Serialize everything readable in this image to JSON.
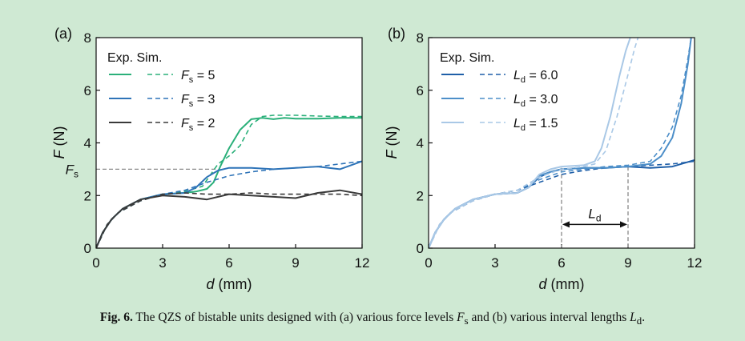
{
  "chart_data": [
    {
      "panel": "(a)",
      "type": "line",
      "xlabel_var": "d",
      "xlabel_unit": " (mm)",
      "ylabel_var": "F",
      "ylabel_unit": " (N)",
      "xlim": [
        0,
        12
      ],
      "ylim": [
        0,
        8
      ],
      "xticks": [
        0,
        3,
        6,
        9,
        12
      ],
      "yticks": [
        0,
        2,
        4,
        6,
        8
      ],
      "legend_header": "Exp. Sim.",
      "legend_placement": "top-left",
      "annotation": {
        "text": "F",
        "sub": "s",
        "value": 3
      },
      "series": [
        {
          "name": "Fs = 5",
          "var": "F",
          "sub": "s",
          "rest": " = 5",
          "color": "#2bb07a",
          "exp": [
            [
              0,
              0
            ],
            [
              0.3,
              0.6
            ],
            [
              0.7,
              1.1
            ],
            [
              1.2,
              1.5
            ],
            [
              2,
              1.85
            ],
            [
              3,
              2.05
            ],
            [
              4,
              2.1
            ],
            [
              4.5,
              2.15
            ],
            [
              5,
              2.25
            ],
            [
              5.3,
              2.5
            ],
            [
              5.6,
              3.1
            ],
            [
              6,
              3.8
            ],
            [
              6.5,
              4.5
            ],
            [
              7,
              4.9
            ],
            [
              7.5,
              4.95
            ],
            [
              8,
              4.9
            ],
            [
              8.5,
              4.95
            ],
            [
              9,
              4.92
            ],
            [
              10,
              4.92
            ],
            [
              11,
              4.95
            ],
            [
              12,
              4.95
            ]
          ],
          "sim": [
            [
              0,
              0
            ],
            [
              0.5,
              0.9
            ],
            [
              1,
              1.35
            ],
            [
              2,
              1.8
            ],
            [
              3,
              2.05
            ],
            [
              4,
              2.15
            ],
            [
              4.8,
              2.35
            ],
            [
              5.5,
              3.2
            ],
            [
              6,
              3.5
            ],
            [
              6.5,
              3.9
            ],
            [
              7,
              4.7
            ],
            [
              7.5,
              5.0
            ],
            [
              8,
              5.05
            ],
            [
              9,
              5.05
            ],
            [
              10,
              5.02
            ],
            [
              11,
              5.0
            ],
            [
              12,
              5.0
            ]
          ]
        },
        {
          "name": "Fs = 3",
          "var": "F",
          "sub": "s",
          "rest": " = 3",
          "color": "#2f74b8",
          "exp": [
            [
              0,
              0
            ],
            [
              0.3,
              0.6
            ],
            [
              0.7,
              1.1
            ],
            [
              1.2,
              1.5
            ],
            [
              2,
              1.85
            ],
            [
              3,
              2.05
            ],
            [
              4,
              2.1
            ],
            [
              4.5,
              2.3
            ],
            [
              5,
              2.7
            ],
            [
              5.5,
              2.95
            ],
            [
              6,
              3.05
            ],
            [
              7,
              3.05
            ],
            [
              8,
              3.0
            ],
            [
              9,
              3.05
            ],
            [
              10,
              3.1
            ],
            [
              11,
              3.0
            ],
            [
              12,
              3.3
            ]
          ],
          "sim": [
            [
              0,
              0
            ],
            [
              0.5,
              0.9
            ],
            [
              1,
              1.35
            ],
            [
              2,
              1.8
            ],
            [
              3,
              2.05
            ],
            [
              4,
              2.2
            ],
            [
              5,
              2.5
            ],
            [
              6,
              2.75
            ],
            [
              7,
              2.9
            ],
            [
              8,
              3.0
            ],
            [
              9,
              3.05
            ],
            [
              10,
              3.1
            ],
            [
              11,
              3.2
            ],
            [
              12,
              3.3
            ]
          ]
        },
        {
          "name": "Fs = 2",
          "var": "F",
          "sub": "s",
          "rest": " = 2",
          "color": "#3a3a3a",
          "exp": [
            [
              0,
              0
            ],
            [
              0.3,
              0.6
            ],
            [
              0.7,
              1.1
            ],
            [
              1.2,
              1.5
            ],
            [
              2,
              1.85
            ],
            [
              3,
              2.0
            ],
            [
              4,
              1.95
            ],
            [
              5,
              1.85
            ],
            [
              6,
              2.05
            ],
            [
              7,
              2.0
            ],
            [
              8,
              1.95
            ],
            [
              9,
              1.9
            ],
            [
              10,
              2.1
            ],
            [
              11,
              2.2
            ],
            [
              12,
              2.05
            ]
          ],
          "sim": [
            [
              0,
              0
            ],
            [
              0.5,
              0.9
            ],
            [
              1,
              1.35
            ],
            [
              2,
              1.8
            ],
            [
              3,
              2.05
            ],
            [
              4,
              2.1
            ],
            [
              5,
              2.05
            ],
            [
              6,
              2.05
            ],
            [
              7,
              2.1
            ],
            [
              8,
              2.05
            ],
            [
              9,
              2.05
            ],
            [
              10,
              2.05
            ],
            [
              11,
              2.05
            ],
            [
              12,
              2.0
            ]
          ]
        }
      ]
    },
    {
      "panel": "(b)",
      "type": "line",
      "xlabel_var": "d",
      "xlabel_unit": " (mm)",
      "ylabel_var": "F",
      "ylabel_unit": " (N)",
      "xlim": [
        0,
        12
      ],
      "ylim": [
        0,
        8
      ],
      "xticks": [
        0,
        3,
        6,
        9,
        12
      ],
      "yticks": [
        0,
        2,
        4,
        6,
        8
      ],
      "legend_header": "Exp. Sim.",
      "legend_placement": "top-left",
      "annotation": {
        "text": "L",
        "sub": "d",
        "x_start": 6,
        "x_end": 9
      },
      "series": [
        {
          "name": "Ld = 6.0",
          "var": "L",
          "sub": "d",
          "rest": " = 6.0",
          "color": "#1f5fa8",
          "exp": [
            [
              0,
              0
            ],
            [
              0.3,
              0.6
            ],
            [
              0.7,
              1.1
            ],
            [
              1.2,
              1.5
            ],
            [
              2,
              1.85
            ],
            [
              3,
              2.05
            ],
            [
              4,
              2.1
            ],
            [
              4.5,
              2.3
            ],
            [
              5,
              2.7
            ],
            [
              5.5,
              2.9
            ],
            [
              6,
              3.0
            ],
            [
              7,
              3.05
            ],
            [
              8,
              3.05
            ],
            [
              9,
              3.1
            ],
            [
              10,
              3.05
            ],
            [
              11,
              3.1
            ],
            [
              12,
              3.35
            ]
          ],
          "sim": [
            [
              0,
              0
            ],
            [
              0.5,
              0.9
            ],
            [
              1,
              1.35
            ],
            [
              2,
              1.8
            ],
            [
              3,
              2.05
            ],
            [
              4,
              2.2
            ],
            [
              5,
              2.5
            ],
            [
              6,
              2.8
            ],
            [
              7,
              2.95
            ],
            [
              8,
              3.05
            ],
            [
              9,
              3.1
            ],
            [
              10,
              3.15
            ],
            [
              11,
              3.2
            ],
            [
              12,
              3.3
            ]
          ]
        },
        {
          "name": "Ld = 3.0",
          "var": "L",
          "sub": "d",
          "rest": " = 3.0",
          "color": "#4d8fc9",
          "exp": [
            [
              0,
              0
            ],
            [
              0.3,
              0.6
            ],
            [
              0.7,
              1.1
            ],
            [
              1.2,
              1.5
            ],
            [
              2,
              1.85
            ],
            [
              3,
              2.05
            ],
            [
              4,
              2.1
            ],
            [
              4.5,
              2.3
            ],
            [
              5,
              2.75
            ],
            [
              5.5,
              2.9
            ],
            [
              6,
              3.0
            ],
            [
              7,
              3.05
            ],
            [
              8,
              3.05
            ],
            [
              9,
              3.1
            ],
            [
              10,
              3.2
            ],
            [
              10.5,
              3.5
            ],
            [
              11,
              4.2
            ],
            [
              11.4,
              5.5
            ],
            [
              11.7,
              7.0
            ],
            [
              11.85,
              8.0
            ]
          ],
          "sim": [
            [
              0,
              0
            ],
            [
              0.5,
              0.9
            ],
            [
              1,
              1.35
            ],
            [
              2,
              1.8
            ],
            [
              3,
              2.05
            ],
            [
              4,
              2.2
            ],
            [
              5,
              2.6
            ],
            [
              6,
              2.9
            ],
            [
              7,
              3.0
            ],
            [
              8,
              3.1
            ],
            [
              9,
              3.15
            ],
            [
              10,
              3.3
            ],
            [
              10.5,
              3.8
            ],
            [
              11,
              4.6
            ],
            [
              11.4,
              5.8
            ],
            [
              11.7,
              7.2
            ],
            [
              11.85,
              8.0
            ]
          ]
        },
        {
          "name": "Ld = 1.5",
          "var": "L",
          "sub": "d",
          "rest": " = 1.5",
          "color": "#a9c8e6",
          "exp": [
            [
              0,
              0
            ],
            [
              0.3,
              0.6
            ],
            [
              0.7,
              1.1
            ],
            [
              1.2,
              1.5
            ],
            [
              2,
              1.85
            ],
            [
              3,
              2.05
            ],
            [
              4,
              2.1
            ],
            [
              4.5,
              2.3
            ],
            [
              5,
              2.8
            ],
            [
              5.5,
              3.0
            ],
            [
              6,
              3.1
            ],
            [
              7,
              3.15
            ],
            [
              7.5,
              3.3
            ],
            [
              7.8,
              3.8
            ],
            [
              8.2,
              5.0
            ],
            [
              8.6,
              6.5
            ],
            [
              8.9,
              7.5
            ],
            [
              9.1,
              8.0
            ]
          ],
          "sim": [
            [
              0,
              0
            ],
            [
              0.5,
              0.9
            ],
            [
              1,
              1.35
            ],
            [
              2,
              1.8
            ],
            [
              3,
              2.05
            ],
            [
              4,
              2.2
            ],
            [
              5,
              2.7
            ],
            [
              6,
              3.0
            ],
            [
              7,
              3.1
            ],
            [
              7.5,
              3.2
            ],
            [
              8,
              3.7
            ],
            [
              8.5,
              5.0
            ],
            [
              9,
              6.6
            ],
            [
              9.3,
              7.6
            ],
            [
              9.45,
              8.0
            ]
          ]
        }
      ]
    }
  ],
  "caption": {
    "fig": "Fig. 6.",
    "part1": " The QZS of bistable units designed with (a) various force levels ",
    "var1": "F",
    "sub1": "s",
    "part2": " and (b) various interval lengths ",
    "var2": "L",
    "sub2": "d",
    "part3": "."
  }
}
